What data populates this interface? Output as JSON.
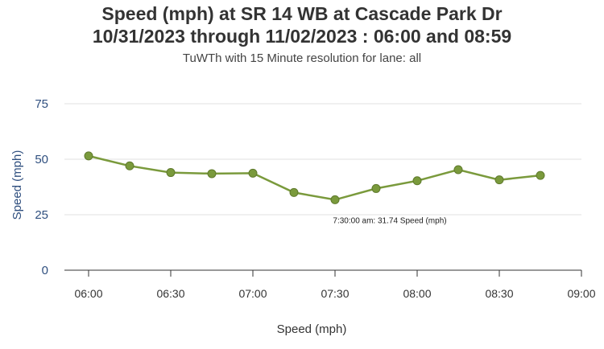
{
  "chart_data": {
    "type": "line",
    "title": "Speed (mph) at SR 14 WB at Cascade Park Dr",
    "title_line2": "10/31/2023 through 11/02/2023 : 06:00 and 08:59",
    "subtitle": "TuWTh with 15 Minute resolution for lane: all",
    "ylabel": "Speed (mph)",
    "xlabel": "Speed (mph)",
    "ylim": [
      0,
      75
    ],
    "yticks": [
      "0",
      "25",
      "50",
      "75"
    ],
    "xticks": [
      "06:00",
      "06:30",
      "07:00",
      "07:30",
      "08:00",
      "08:30",
      "09:00"
    ],
    "grid": true,
    "line_color": "#7a9a3c",
    "x": [
      "06:00",
      "06:15",
      "06:30",
      "06:45",
      "07:00",
      "07:15",
      "07:30",
      "07:45",
      "08:00",
      "08:15",
      "08:30",
      "08:45"
    ],
    "values": [
      51.5,
      47.0,
      44.0,
      43.5,
      43.7,
      35.0,
      31.74,
      36.8,
      40.3,
      45.3,
      40.7,
      42.7
    ],
    "tooltip": "7:30:00 am: 31.74 Speed (mph)"
  }
}
